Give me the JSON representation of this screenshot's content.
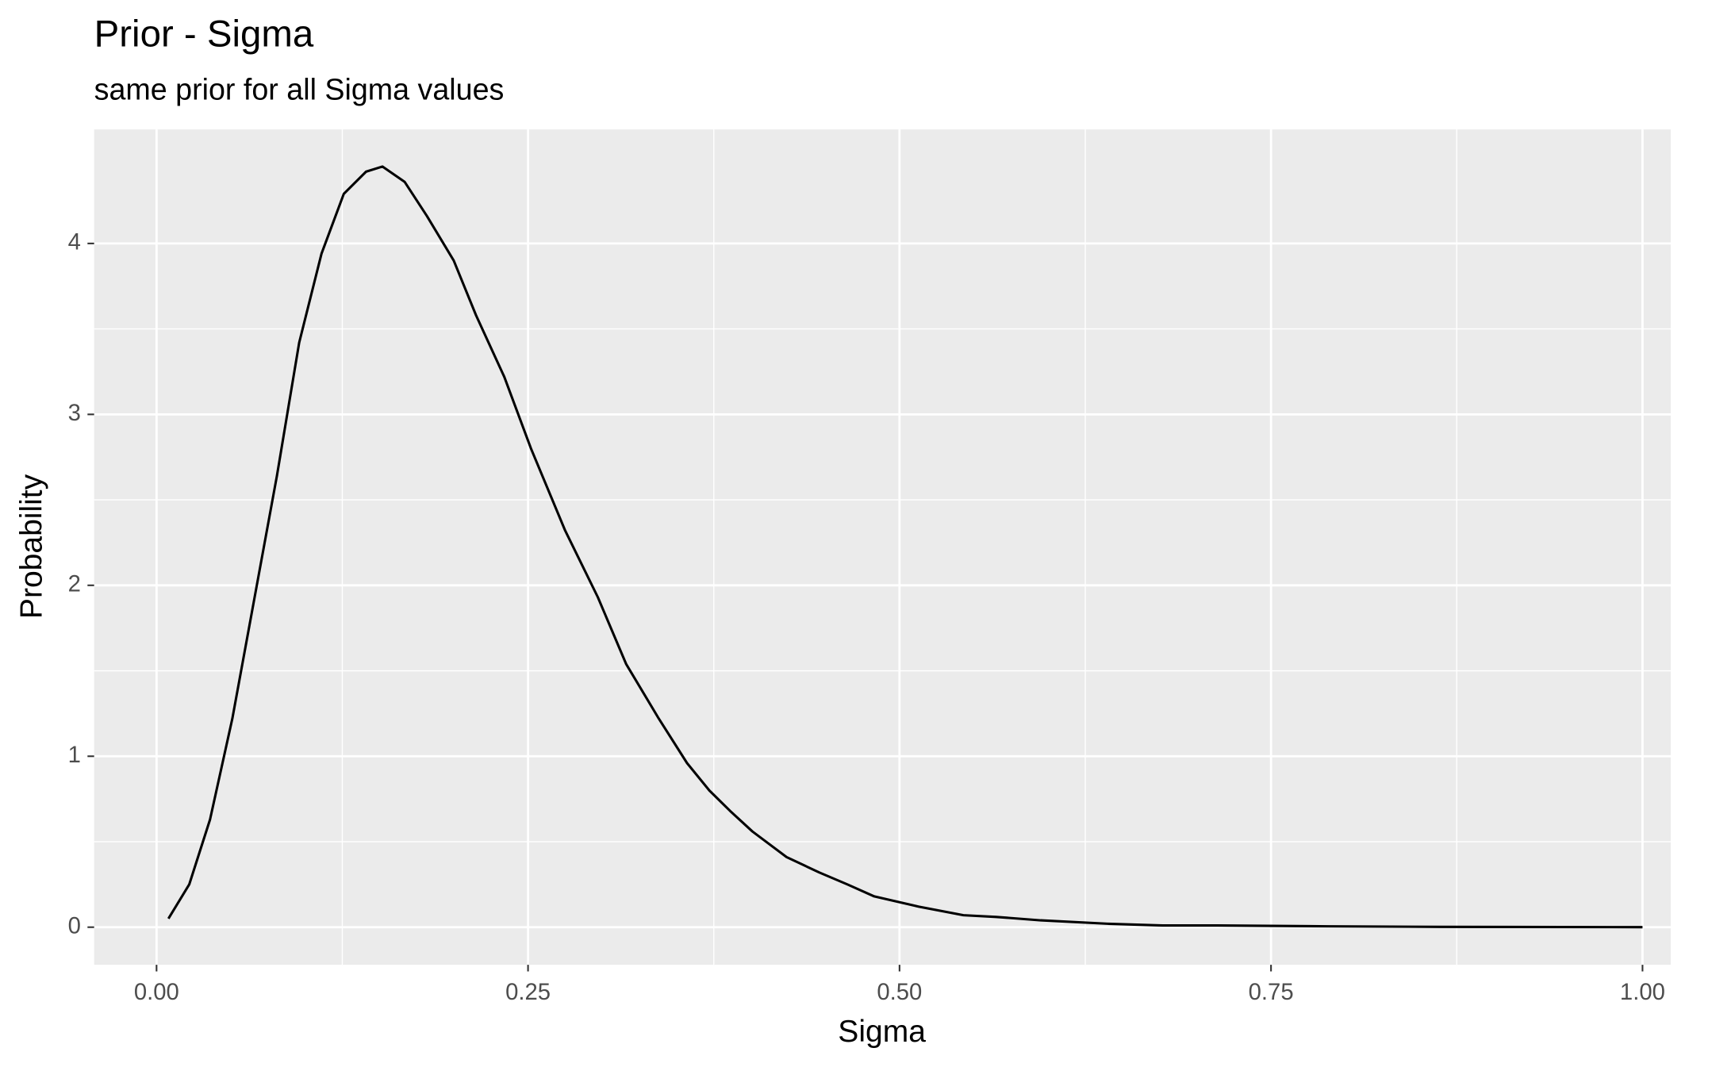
{
  "chart_data": {
    "type": "line",
    "title": "Prior - Sigma",
    "subtitle": "same prior for all Sigma values",
    "x_label": "Sigma",
    "y_label": "Probability",
    "x": [
      0.008,
      0.022,
      0.036,
      0.051,
      0.066,
      0.081,
      0.096,
      0.111,
      0.126,
      0.141,
      0.152,
      0.167,
      0.182,
      0.2,
      0.215,
      0.234,
      0.252,
      0.275,
      0.297,
      0.316,
      0.338,
      0.357,
      0.372,
      0.386,
      0.401,
      0.424,
      0.446,
      0.465,
      0.483,
      0.513,
      0.543,
      0.565,
      0.595,
      0.64,
      0.677,
      0.714,
      0.789,
      0.863,
      1.0
    ],
    "series": [
      {
        "color": "#000000",
        "values": [
          0.05,
          0.25,
          0.63,
          1.22,
          1.93,
          2.64,
          3.42,
          3.94,
          4.29,
          4.42,
          4.45,
          4.36,
          4.16,
          3.9,
          3.58,
          3.22,
          2.8,
          2.32,
          1.93,
          1.54,
          1.22,
          0.96,
          0.8,
          0.68,
          0.56,
          0.41,
          0.32,
          0.25,
          0.18,
          0.12,
          0.07,
          0.06,
          0.04,
          0.02,
          0.01,
          0.01,
          0.005,
          0.002,
          0
        ]
      }
    ],
    "xlim": [
      -0.042,
      1.019
    ],
    "ylim": [
      -0.22,
      4.667
    ],
    "xticks": [
      {
        "value": 0,
        "label": "0.00"
      },
      {
        "value": 0.25,
        "label": "0.25"
      },
      {
        "value": 0.5,
        "label": "0.50"
      },
      {
        "value": 0.75,
        "label": "0.75"
      },
      {
        "value": 1,
        "label": "1.00"
      }
    ],
    "yticks": [
      0,
      1,
      2,
      3,
      4
    ],
    "grid": true,
    "background": "#ebebeb"
  }
}
